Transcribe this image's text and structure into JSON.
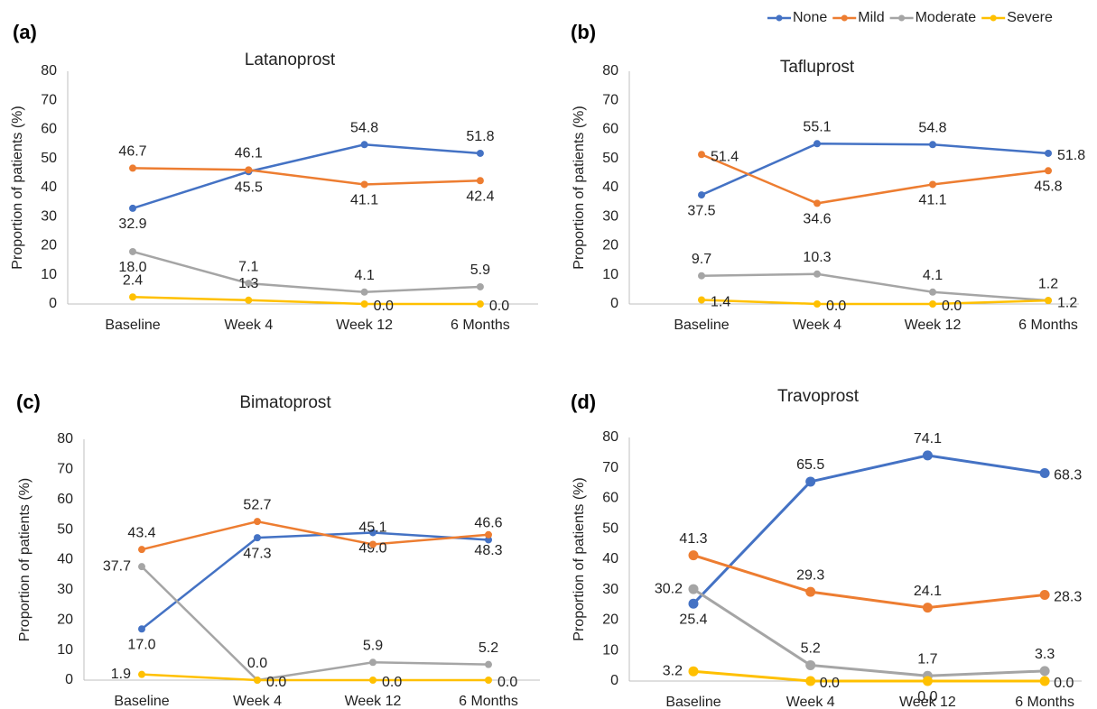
{
  "chart_data": [
    {
      "type": "line",
      "label": "(a)",
      "title": "Latanoprost",
      "y_label": "Proportion of patients (%)",
      "categories": [
        "Baseline",
        "Week 4",
        "Week 12",
        "6 Months"
      ],
      "ylim": [
        0,
        80
      ],
      "yticks": [
        0,
        10,
        20,
        30,
        40,
        50,
        60,
        70,
        80
      ],
      "grid": false,
      "legend": "top right",
      "series": [
        {
          "name": "None",
          "color": "#4472c4",
          "values": [
            32.9,
            45.5,
            54.8,
            51.8
          ],
          "value_labels": [
            "32.9",
            "45.5",
            "54.8",
            "51.8"
          ]
        },
        {
          "name": "Mild",
          "color": "#ed7d31",
          "values": [
            46.7,
            46.1,
            41.1,
            42.4
          ],
          "value_labels": [
            "46.7",
            "46.1",
            "41.1",
            "42.4"
          ]
        },
        {
          "name": "Moderate",
          "color": "#a5a5a5",
          "values": [
            18.0,
            7.1,
            4.1,
            5.9
          ],
          "value_labels": [
            "18.0",
            "7.1",
            "4.1",
            "5.9"
          ]
        },
        {
          "name": "Severe",
          "color": "#ffc000",
          "values": [
            2.4,
            1.3,
            0,
            0
          ],
          "value_labels": [
            "2.4",
            "1.3",
            "0.0",
            "0.0"
          ]
        }
      ]
    },
    {
      "type": "line",
      "label": "(b)",
      "title": "Tafluprost",
      "y_label": "Proportion of patients (%)",
      "categories": [
        "Baseline",
        "Week 4",
        "Week 12",
        "6 Months"
      ],
      "ylim": [
        0,
        80
      ],
      "yticks": [
        0,
        10,
        20,
        30,
        40,
        50,
        60,
        70,
        80
      ],
      "grid": false,
      "series": [
        {
          "name": "None",
          "color": "#4472c4",
          "values": [
            37.5,
            55.1,
            54.8,
            51.8
          ],
          "value_labels": [
            "37.5",
            "55.1",
            "54.8",
            "51.8"
          ]
        },
        {
          "name": "Mild",
          "color": "#ed7d31",
          "values": [
            51.4,
            34.6,
            41.1,
            45.8
          ],
          "value_labels": [
            "51.4",
            "34.6",
            "41.1",
            "45.8"
          ]
        },
        {
          "name": "Moderate",
          "color": "#a5a5a5",
          "values": [
            9.7,
            10.3,
            4.1,
            1.2
          ],
          "value_labels": [
            "9.7",
            "10.3",
            "4.1",
            "1.2"
          ]
        },
        {
          "name": "Severe",
          "color": "#ffc000",
          "values": [
            1.4,
            0,
            0,
            1.2
          ],
          "value_labels": [
            "1.4",
            "0.0",
            "0.0",
            "1.2"
          ]
        }
      ]
    },
    {
      "type": "line",
      "label": "(c)",
      "title": "Bimatoprost",
      "y_label": "Proportion of patients (%)",
      "categories": [
        "Baseline",
        "Week 4",
        "Week 12",
        "6 Months"
      ],
      "ylim": [
        0,
        80
      ],
      "yticks": [
        0,
        10,
        20,
        30,
        40,
        50,
        60,
        70,
        80
      ],
      "grid": false,
      "series": [
        {
          "name": "None",
          "color": "#4472c4",
          "values": [
            17.0,
            47.3,
            49.0,
            46.6
          ],
          "value_labels": [
            "17.0",
            "47.3",
            "49.0",
            "46.6"
          ]
        },
        {
          "name": "Mild",
          "color": "#ed7d31",
          "values": [
            43.4,
            52.7,
            45.1,
            48.3
          ],
          "value_labels": [
            "43.4",
            "52.7",
            "45.1",
            "48.3"
          ]
        },
        {
          "name": "Moderate",
          "color": "#a5a5a5",
          "values": [
            37.7,
            0,
            5.9,
            5.2
          ],
          "value_labels": [
            "37.7",
            "0.0",
            "5.9",
            "5.2"
          ]
        },
        {
          "name": "Severe",
          "color": "#ffc000",
          "values": [
            1.9,
            0,
            0,
            0
          ],
          "value_labels": [
            "1.9",
            "0.0",
            "0.0",
            "0.0"
          ]
        }
      ]
    },
    {
      "type": "line",
      "label": "(d)",
      "title": "Travoprost",
      "y_label": "Proportion of patients (%)",
      "categories": [
        "Baseline",
        "Week 4",
        "Week 12",
        "6 Months"
      ],
      "ylim": [
        0,
        80
      ],
      "yticks": [
        0,
        10,
        20,
        30,
        40,
        50,
        60,
        70,
        80
      ],
      "grid": false,
      "series": [
        {
          "name": "None",
          "color": "#4472c4",
          "values": [
            25.4,
            65.5,
            74.1,
            68.3
          ],
          "value_labels": [
            "25.4",
            "65.5",
            "74.1",
            "68.3"
          ]
        },
        {
          "name": "Mild",
          "color": "#ed7d31",
          "values": [
            41.3,
            29.3,
            24.1,
            28.3
          ],
          "value_labels": [
            "41.3",
            "29.3",
            "24.1",
            "28.3"
          ]
        },
        {
          "name": "Moderate",
          "color": "#a5a5a5",
          "values": [
            30.2,
            5.2,
            1.7,
            3.3
          ],
          "value_labels": [
            "30.2",
            "5.2",
            "1.7",
            "3.3"
          ]
        },
        {
          "name": "Severe",
          "color": "#ffc000",
          "values": [
            3.2,
            0,
            0,
            0
          ],
          "value_labels": [
            "3.2",
            "0.0",
            "0.0",
            "0.0"
          ]
        }
      ]
    }
  ]
}
